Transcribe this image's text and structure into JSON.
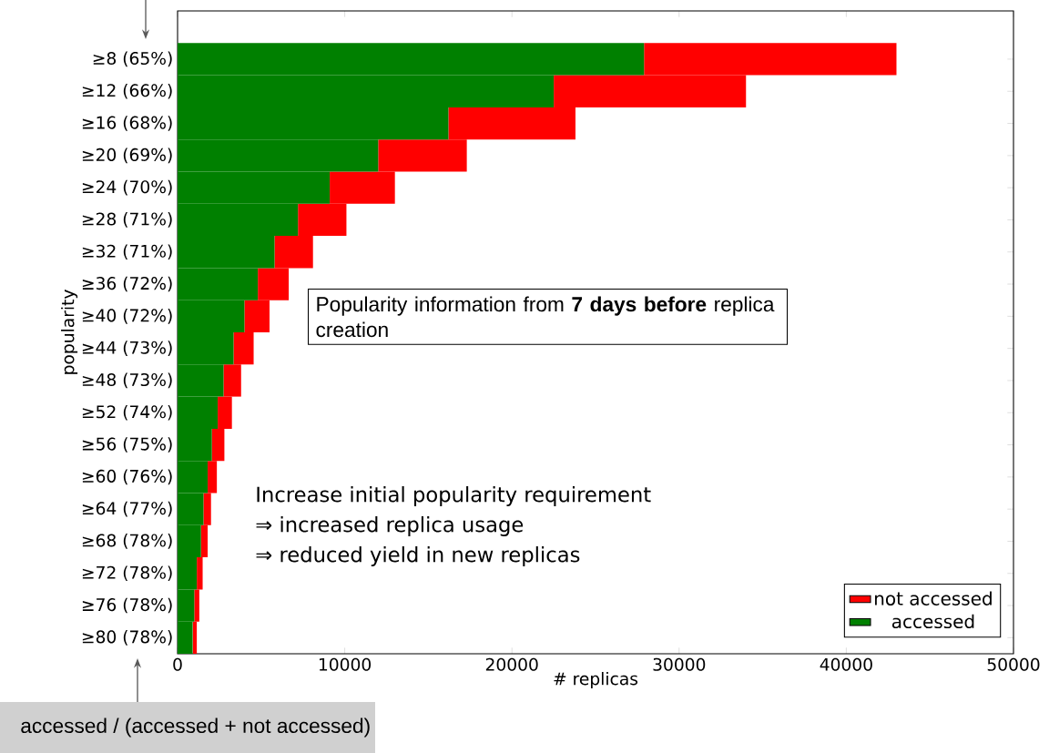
{
  "chart_data": {
    "type": "bar",
    "orientation": "horizontal",
    "stacked": true,
    "categories": [
      "≥8 (65%)",
      "≥12 (66%)",
      "≥16 (68%)",
      "≥20 (69%)",
      "≥24 (70%)",
      "≥28 (71%)",
      "≥32 (71%)",
      "≥36 (72%)",
      "≥40 (72%)",
      "≥44 (73%)",
      "≥48 (73%)",
      "≥52 (74%)",
      "≥56 (75%)",
      "≥60 (76%)",
      "≥64 (77%)",
      "≥68 (78%)",
      "≥72 (78%)",
      "≥76 (78%)",
      "≥80 (78%)"
    ],
    "series": [
      {
        "name": "accessed",
        "color": "#008000",
        "values": [
          27900,
          22500,
          16200,
          12000,
          9100,
          7200,
          5800,
          4800,
          4000,
          3350,
          2750,
          2400,
          2050,
          1800,
          1550,
          1400,
          1150,
          1000,
          900
        ]
      },
      {
        "name": "not accessed",
        "color": "#ff0000",
        "values": [
          15100,
          11500,
          7600,
          5300,
          3900,
          2900,
          2300,
          1850,
          1500,
          1200,
          1050,
          850,
          750,
          550,
          450,
          400,
          350,
          300,
          250
        ]
      }
    ],
    "xlim": [
      0,
      50000
    ],
    "xticks": [
      0,
      10000,
      20000,
      30000,
      40000,
      50000
    ],
    "xlabel": "# replicas",
    "ylabel": "popularity",
    "legend": "bottom right",
    "grid": false,
    "annotations": [
      "Popularity information from **7 days before** replica creation",
      "Increase initial popularity requirement",
      "⇒ increased replica usage",
      "⇒ reduced yield in new replicas",
      "accessed / (accessed + not accessed)"
    ]
  }
}
